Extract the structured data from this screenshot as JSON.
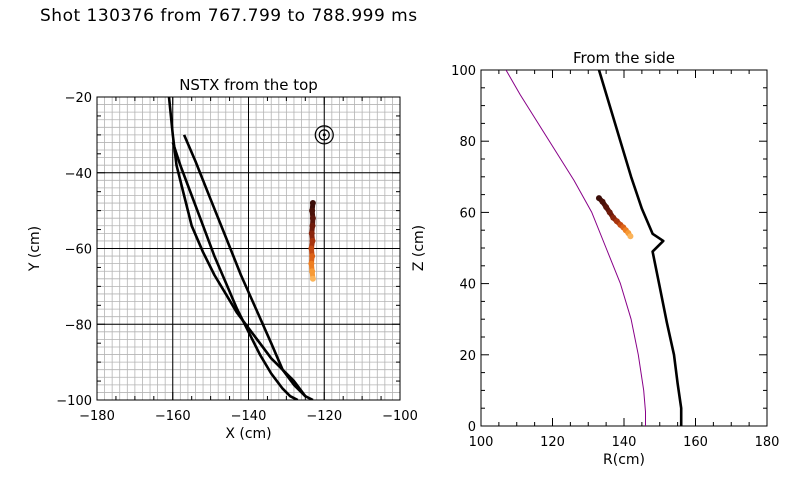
{
  "title": "Shot 130376 from 767.799 to 788.999 ms",
  "chart_data": [
    {
      "type": "line",
      "title": "NSTX from the top",
      "xlabel": "X (cm)",
      "ylabel": "Y (cm)",
      "xlim": [
        -180,
        -100
      ],
      "ylim": [
        -100,
        -20
      ],
      "xticks": [
        -180,
        -160,
        -140,
        -120,
        -100
      ],
      "yticks": [
        -100,
        -80,
        -60,
        -40,
        -20
      ],
      "xtick_labels": [
        "−180",
        "−160",
        "−140",
        "−120",
        "−100"
      ],
      "ytick_labels": [
        "−100",
        "−80",
        "−60",
        "−40",
        "−20"
      ],
      "grid": "fine",
      "series": [
        {
          "name": "boundary-curve-1",
          "color": "#000000",
          "x": [
            -161,
            -160,
            -159,
            -157,
            -155,
            -152,
            -149,
            -146,
            -143,
            -140,
            -137,
            -134,
            -131,
            -128,
            -125
          ],
          "y": [
            -20,
            -30,
            -38,
            -46,
            -54,
            -61,
            -67,
            -72,
            -77,
            -81,
            -85,
            -89,
            -92,
            -95,
            -99
          ]
        },
        {
          "name": "boundary-curve-2",
          "color": "#000000",
          "x": [
            -160,
            -158,
            -155,
            -152,
            -149,
            -146,
            -143,
            -140,
            -137,
            -134,
            -131,
            -129,
            -127
          ],
          "y": [
            -32,
            -38,
            -46,
            -54,
            -62,
            -69,
            -76,
            -82,
            -88,
            -93,
            -97,
            -99,
            -100
          ]
        },
        {
          "name": "boundary-curve-3",
          "color": "#000000",
          "x": [
            -157,
            -154,
            -150,
            -146,
            -142,
            -138,
            -134,
            -131,
            -128,
            -125,
            -123
          ],
          "y": [
            -30,
            -37,
            -47,
            -57,
            -67,
            -76,
            -85,
            -92,
            -96,
            -99,
            -100
          ]
        }
      ],
      "markers": [
        {
          "name": "target",
          "x": -120,
          "y": -30,
          "color": "#000000"
        }
      ],
      "trace": {
        "name": "filament-trace",
        "points": [
          {
            "x": -123.0,
            "y": -48,
            "color": "#3b0d08"
          },
          {
            "x": -123.2,
            "y": -50,
            "color": "#4a1108"
          },
          {
            "x": -123.0,
            "y": -52,
            "color": "#5a150a"
          },
          {
            "x": -123.1,
            "y": -54,
            "color": "#6e1a0a"
          },
          {
            "x": -123.3,
            "y": -56,
            "color": "#8a250c"
          },
          {
            "x": -123.1,
            "y": -58,
            "color": "#a8340e"
          },
          {
            "x": -123.4,
            "y": -60,
            "color": "#c54a12"
          },
          {
            "x": -123.2,
            "y": -62,
            "color": "#dc6218"
          },
          {
            "x": -123.4,
            "y": -64,
            "color": "#ee7f22"
          },
          {
            "x": -123.2,
            "y": -66,
            "color": "#f79a36"
          },
          {
            "x": -123.0,
            "y": -68,
            "color": "#fbb45a"
          }
        ]
      }
    },
    {
      "type": "line",
      "title": "From the side",
      "xlabel": "R(cm)",
      "ylabel": "Z (cm)",
      "xlim": [
        100,
        180
      ],
      "ylim": [
        0,
        100
      ],
      "xticks": [
        100,
        120,
        140,
        160,
        180
      ],
      "yticks": [
        0,
        20,
        40,
        60,
        80,
        100
      ],
      "xtick_labels": [
        "100",
        "120",
        "140",
        "160",
        "180"
      ],
      "ytick_labels": [
        "0",
        "20",
        "40",
        "60",
        "80",
        "100"
      ],
      "grid": "none",
      "series": [
        {
          "name": "vessel-wall",
          "color": "#000000",
          "x": [
            133,
            136,
            139,
            142,
            145,
            148,
            151,
            148,
            150,
            152,
            154,
            155,
            156,
            156
          ],
          "y": [
            100,
            90,
            80,
            70,
            61,
            54,
            52,
            49,
            39,
            29,
            20,
            12,
            5,
            0
          ]
        },
        {
          "name": "separatrix",
          "color": "#880088",
          "x": [
            107,
            111,
            116,
            121,
            126,
            131,
            135,
            139,
            142,
            144,
            145.5,
            146,
            146
          ],
          "y": [
            100,
            93,
            85,
            77,
            69,
            60,
            50,
            40,
            30,
            20,
            10,
            4,
            0
          ]
        }
      ],
      "trace": {
        "name": "filament-trace",
        "points": [
          {
            "x": 133,
            "y": 64,
            "color": "#3b0d08"
          },
          {
            "x": 134,
            "y": 63,
            "color": "#4a1108"
          },
          {
            "x": 135,
            "y": 61.5,
            "color": "#5a150a"
          },
          {
            "x": 136,
            "y": 60,
            "color": "#6e1a0a"
          },
          {
            "x": 137,
            "y": 58.5,
            "color": "#8a250c"
          },
          {
            "x": 138,
            "y": 57.5,
            "color": "#a8340e"
          },
          {
            "x": 139,
            "y": 56.5,
            "color": "#c54a12"
          },
          {
            "x": 139.8,
            "y": 55.8,
            "color": "#dc6218"
          },
          {
            "x": 140.5,
            "y": 55,
            "color": "#ee7f22"
          },
          {
            "x": 141.2,
            "y": 54.2,
            "color": "#f79a36"
          },
          {
            "x": 141.8,
            "y": 53.3,
            "color": "#fbb45a"
          }
        ]
      }
    }
  ]
}
